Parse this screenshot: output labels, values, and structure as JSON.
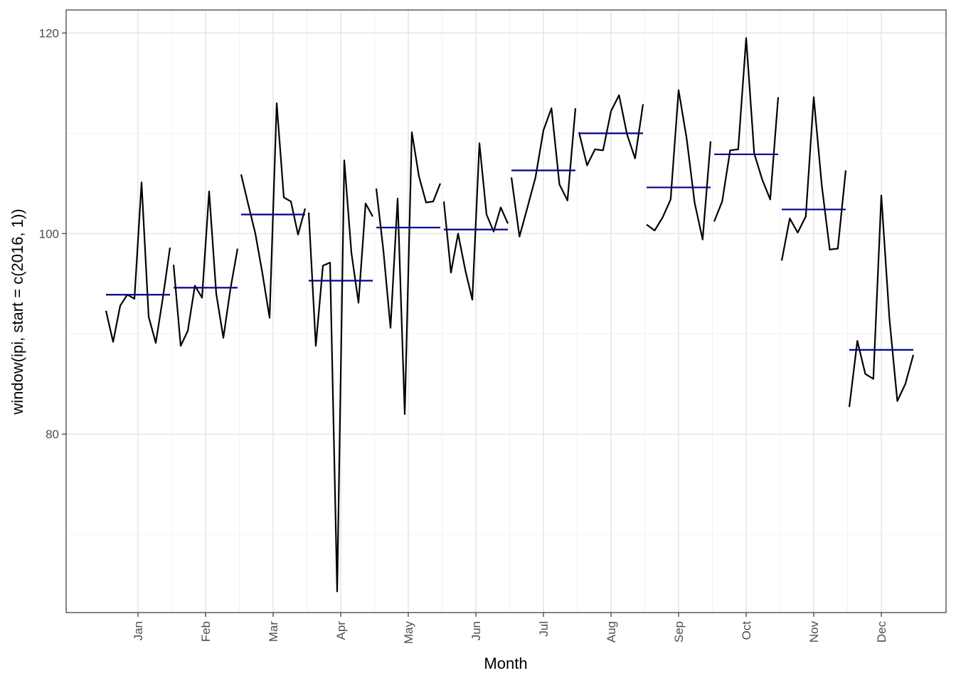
{
  "chart_data": {
    "type": "line",
    "plot_kind": "seasonal subseries plot",
    "xlabel": "Month",
    "ylabel": "window(ipi, start = c(2016, 1))",
    "y_ticks": [
      80,
      100,
      120
    ],
    "ylim": [
      62.2,
      122.3
    ],
    "grid": true,
    "line_color": "#000000",
    "mean_color": "#00008B",
    "months": [
      {
        "label": "Jan",
        "values": [
          92.3,
          89.2,
          92.8,
          93.9,
          93.5,
          105.1,
          91.7,
          89.1,
          93.6,
          98.6
        ],
        "mean": 93.9
      },
      {
        "label": "Feb",
        "values": [
          96.9,
          88.8,
          90.3,
          94.8,
          93.6,
          104.2,
          94.0,
          89.6,
          94.5,
          98.5
        ],
        "mean": 94.6
      },
      {
        "label": "Mar",
        "values": [
          105.9,
          102.9,
          100.0,
          96.0,
          91.6,
          113.0,
          103.6,
          103.2,
          99.9,
          102.5
        ],
        "mean": 101.9
      },
      {
        "label": "Apr",
        "values": [
          102.1,
          88.8,
          96.8,
          97.1,
          64.3,
          107.3,
          98.1,
          93.1,
          103.0,
          101.7
        ],
        "mean": 95.3
      },
      {
        "label": "May",
        "values": [
          104.5,
          98.3,
          90.6,
          103.5,
          82.0,
          110.1,
          105.7,
          103.1,
          103.2,
          105.0
        ],
        "mean": 100.6
      },
      {
        "label": "Jun",
        "values": [
          103.2,
          96.1,
          100.0,
          96.4,
          93.4,
          109.0,
          101.9,
          100.2,
          102.6,
          101.0
        ],
        "mean": 100.4
      },
      {
        "label": "Jul",
        "values": [
          105.6,
          99.7,
          102.6,
          105.6,
          110.3,
          112.5,
          104.9,
          103.3,
          112.5
        ],
        "mean": 106.3
      },
      {
        "label": "Aug",
        "values": [
          110.1,
          106.8,
          108.4,
          108.3,
          112.2,
          113.8,
          109.9,
          107.5,
          112.9
        ],
        "mean": 110.0
      },
      {
        "label": "Sep",
        "values": [
          100.9,
          100.3,
          101.6,
          103.4,
          114.3,
          109.5,
          103.1,
          99.4,
          109.2
        ],
        "mean": 104.6
      },
      {
        "label": "Oct",
        "values": [
          101.2,
          103.2,
          108.3,
          108.4,
          119.5,
          108.0,
          105.4,
          103.4,
          113.6
        ],
        "mean": 107.9
      },
      {
        "label": "Nov",
        "values": [
          97.3,
          101.5,
          100.1,
          101.7,
          113.6,
          104.8,
          98.4,
          98.5,
          106.3
        ],
        "mean": 102.4
      },
      {
        "label": "Dec",
        "values": [
          82.7,
          89.3,
          86.0,
          85.5,
          103.8,
          91.6,
          83.3,
          85.0,
          87.9
        ],
        "mean": 88.4
      }
    ]
  }
}
